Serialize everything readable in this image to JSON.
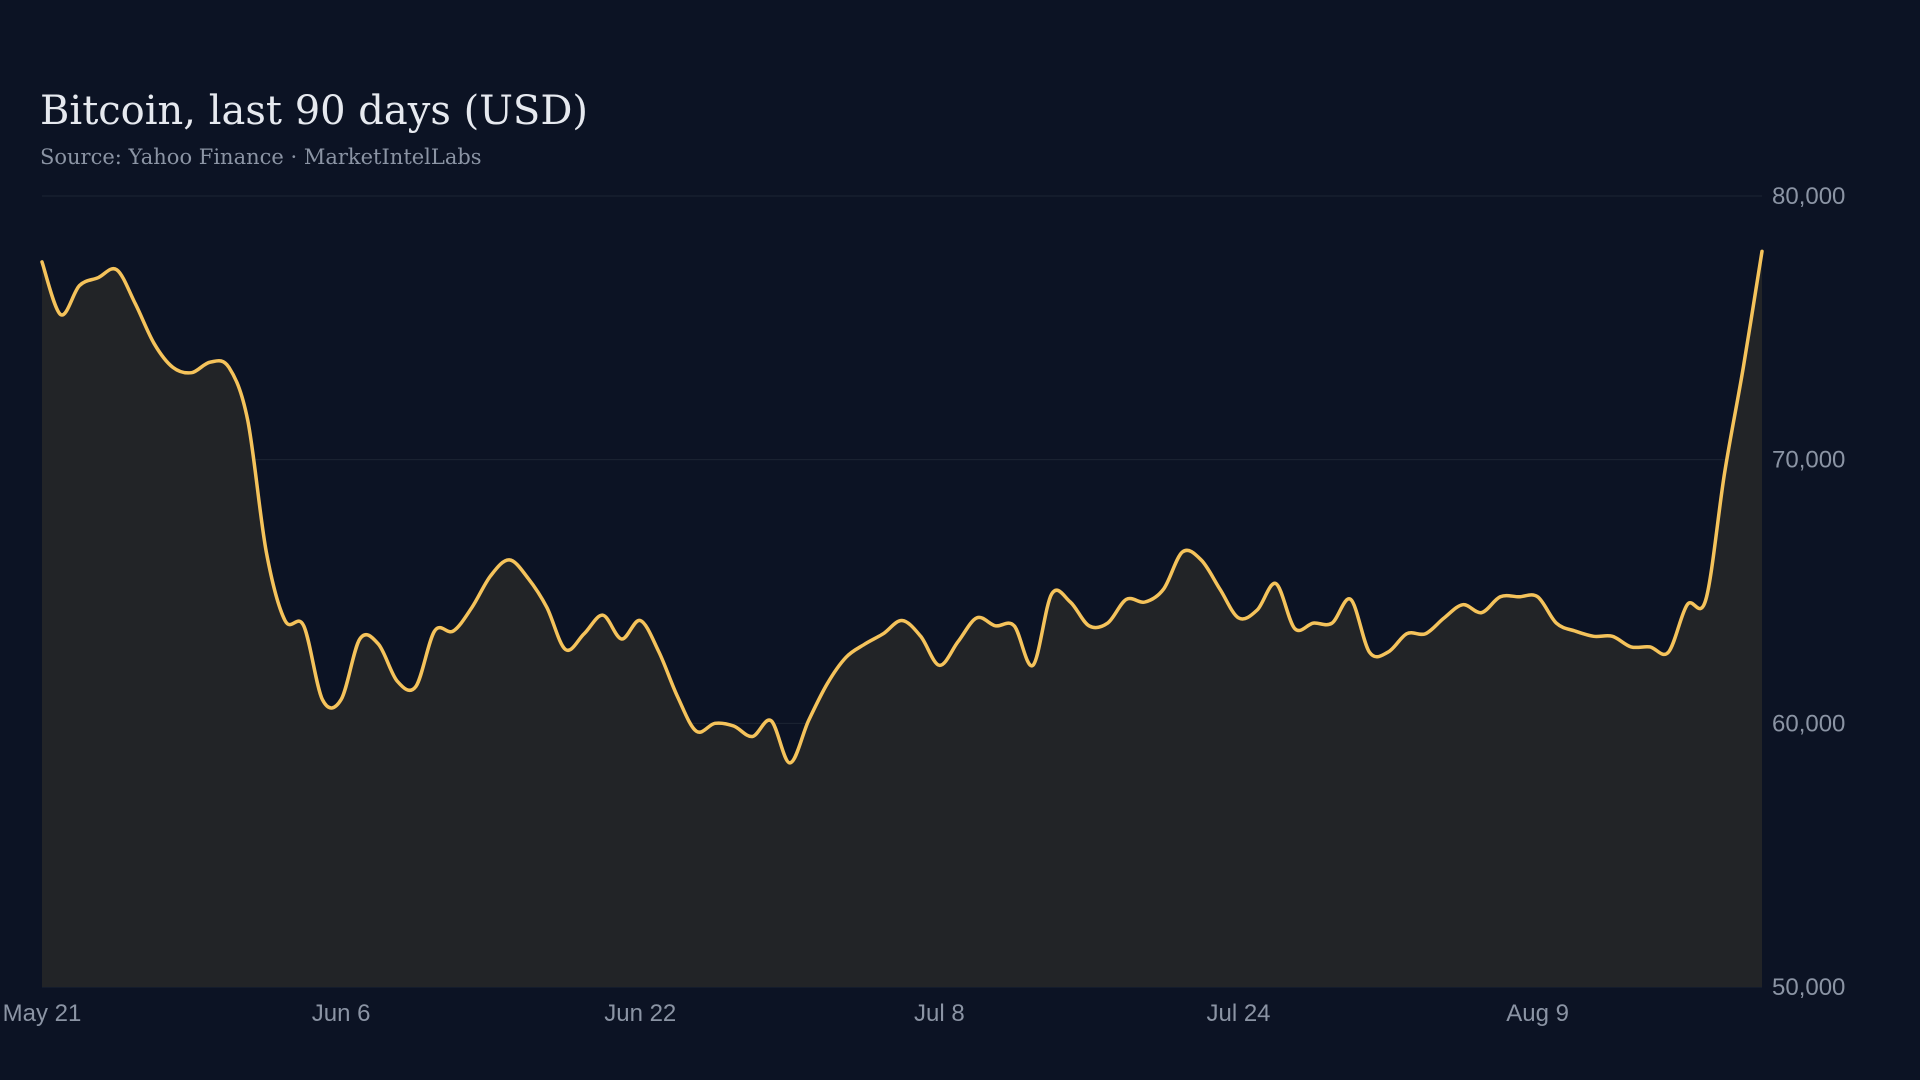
{
  "title": "Bitcoin, last 90 days (USD)",
  "subtitle": "Source: Yahoo Finance · MarketIntelLabs",
  "colors": {
    "background": "#0c1324",
    "line": "#f5c35b",
    "area": "#222427",
    "grid": "#1d2433",
    "text": "#8b94a4",
    "title": "#e6e9ef"
  },
  "chart_data": {
    "type": "area",
    "title": "Bitcoin, last 90 days (USD)",
    "subtitle": "Source: Yahoo Finance · MarketIntelLabs",
    "xlabel": "",
    "ylabel": "",
    "ylim": [
      50000,
      80000
    ],
    "yticks": [
      50000,
      60000,
      70000,
      80000
    ],
    "ytick_labels": [
      "50,000",
      "60,000",
      "70,000",
      "80,000"
    ],
    "y_axis_position": "right",
    "xticks": [
      "2024-05-21",
      "2024-06-06",
      "2024-06-22",
      "2024-07-08",
      "2024-07-24",
      "2024-08-09"
    ],
    "xtick_labels": [
      "May 21",
      "Jun  6",
      "Jun 22",
      "Jul  8",
      "Jul 24",
      "Aug  9"
    ],
    "grid": true,
    "legend": "none",
    "series": [
      {
        "values": [
          [
            "2024-05-21",
            77500
          ],
          [
            "2024-05-22",
            75500
          ],
          [
            "2024-05-23",
            76600
          ],
          [
            "2024-05-24",
            76900
          ],
          [
            "2024-05-25",
            77200
          ],
          [
            "2024-05-26",
            75900
          ],
          [
            "2024-05-27",
            74400
          ],
          [
            "2024-05-28",
            73500
          ],
          [
            "2024-05-29",
            73300
          ],
          [
            "2024-05-30",
            73700
          ],
          [
            "2024-05-31",
            73500
          ],
          [
            "2024-06-01",
            71500
          ],
          [
            "2024-06-02",
            66500
          ],
          [
            "2024-06-03",
            63900
          ],
          [
            "2024-06-04",
            63700
          ],
          [
            "2024-06-05",
            60900
          ],
          [
            "2024-06-06",
            60900
          ],
          [
            "2024-06-07",
            63200
          ],
          [
            "2024-06-08",
            63000
          ],
          [
            "2024-06-09",
            61600
          ],
          [
            "2024-06-10",
            61400
          ],
          [
            "2024-06-11",
            63500
          ],
          [
            "2024-06-12",
            63500
          ],
          [
            "2024-06-13",
            64400
          ],
          [
            "2024-06-14",
            65600
          ],
          [
            "2024-06-15",
            66200
          ],
          [
            "2024-06-16",
            65500
          ],
          [
            "2024-06-17",
            64400
          ],
          [
            "2024-06-18",
            62800
          ],
          [
            "2024-06-19",
            63400
          ],
          [
            "2024-06-20",
            64100
          ],
          [
            "2024-06-21",
            63200
          ],
          [
            "2024-06-22",
            63900
          ],
          [
            "2024-06-23",
            62700
          ],
          [
            "2024-06-24",
            61000
          ],
          [
            "2024-06-25",
            59700
          ],
          [
            "2024-06-26",
            60000
          ],
          [
            "2024-06-27",
            59900
          ],
          [
            "2024-06-28",
            59500
          ],
          [
            "2024-06-29",
            60100
          ],
          [
            "2024-06-30",
            58500
          ],
          [
            "2024-07-01",
            60100
          ],
          [
            "2024-07-02",
            61500
          ],
          [
            "2024-07-03",
            62500
          ],
          [
            "2024-07-04",
            63000
          ],
          [
            "2024-07-05",
            63400
          ],
          [
            "2024-07-06",
            63900
          ],
          [
            "2024-07-07",
            63300
          ],
          [
            "2024-07-08",
            62200
          ],
          [
            "2024-07-09",
            63100
          ],
          [
            "2024-07-10",
            64000
          ],
          [
            "2024-07-11",
            63700
          ],
          [
            "2024-07-12",
            63700
          ],
          [
            "2024-07-13",
            62200
          ],
          [
            "2024-07-14",
            64900
          ],
          [
            "2024-07-15",
            64600
          ],
          [
            "2024-07-16",
            63700
          ],
          [
            "2024-07-17",
            63800
          ],
          [
            "2024-07-18",
            64700
          ],
          [
            "2024-07-19",
            64600
          ],
          [
            "2024-07-20",
            65100
          ],
          [
            "2024-07-21",
            66500
          ],
          [
            "2024-07-22",
            66200
          ],
          [
            "2024-07-23",
            65100
          ],
          [
            "2024-07-24",
            64000
          ],
          [
            "2024-07-25",
            64300
          ],
          [
            "2024-07-26",
            65300
          ],
          [
            "2024-07-27",
            63600
          ],
          [
            "2024-07-28",
            63800
          ],
          [
            "2024-07-29",
            63800
          ],
          [
            "2024-07-30",
            64700
          ],
          [
            "2024-07-31",
            62700
          ],
          [
            "2024-08-01",
            62700
          ],
          [
            "2024-08-02",
            63400
          ],
          [
            "2024-08-03",
            63400
          ],
          [
            "2024-08-04",
            64000
          ],
          [
            "2024-08-05",
            64500
          ],
          [
            "2024-08-06",
            64200
          ],
          [
            "2024-08-07",
            64800
          ],
          [
            "2024-08-08",
            64800
          ],
          [
            "2024-08-09",
            64800
          ],
          [
            "2024-08-10",
            63800
          ],
          [
            "2024-08-11",
            63500
          ],
          [
            "2024-08-12",
            63300
          ],
          [
            "2024-08-13",
            63300
          ],
          [
            "2024-08-14",
            62900
          ],
          [
            "2024-08-15",
            62900
          ],
          [
            "2024-08-16",
            62700
          ],
          [
            "2024-08-17",
            64500
          ],
          [
            "2024-08-18",
            64700
          ],
          [
            "2024-08-19",
            69500
          ],
          [
            "2024-08-20",
            73500
          ],
          [
            "2024-08-21",
            77900
          ]
        ]
      }
    ]
  }
}
